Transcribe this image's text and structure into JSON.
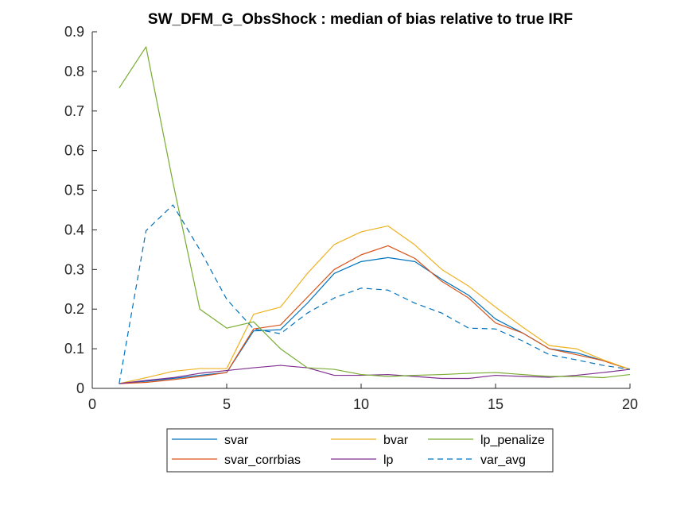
{
  "chart_data": {
    "type": "line",
    "title": "SW_DFM_G_ObsShock : median of bias relative to true IRF",
    "xlabel": "",
    "ylabel": "",
    "xlim": [
      0,
      20
    ],
    "ylim": [
      0,
      0.9
    ],
    "xticks": [
      0,
      5,
      10,
      15,
      20
    ],
    "yticks": [
      0,
      0.1,
      0.2,
      0.3,
      0.4,
      0.5,
      0.6,
      0.7,
      0.8,
      0.9
    ],
    "xtick_labels": [
      "0",
      "5",
      "10",
      "15",
      "20"
    ],
    "ytick_labels": [
      "0",
      "0.1",
      "0.2",
      "0.3",
      "0.4",
      "0.5",
      "0.6",
      "0.7",
      "0.8",
      "0.9"
    ],
    "grid": false,
    "legend_position": "bottom, outside, 3 columns",
    "x": [
      1,
      2,
      3,
      4,
      5,
      6,
      7,
      8,
      9,
      10,
      11,
      12,
      13,
      14,
      15,
      16,
      17,
      18,
      19,
      20
    ],
    "series": [
      {
        "name": "svar",
        "color": "#0072BD",
        "dash": "solid",
        "values": [
          0.012,
          0.018,
          0.025,
          0.033,
          0.04,
          0.145,
          0.148,
          0.215,
          0.29,
          0.32,
          0.33,
          0.32,
          0.275,
          0.235,
          0.175,
          0.14,
          0.1,
          0.09,
          0.07,
          0.048
        ]
      },
      {
        "name": "svar_corrbias",
        "color": "#D95319",
        "dash": "solid",
        "values": [
          0.012,
          0.015,
          0.022,
          0.03,
          0.04,
          0.15,
          0.16,
          0.23,
          0.3,
          0.337,
          0.36,
          0.328,
          0.27,
          0.228,
          0.165,
          0.14,
          0.1,
          0.085,
          0.07,
          0.048
        ]
      },
      {
        "name": "bvar",
        "color": "#EDB120",
        "dash": "solid",
        "values": [
          0.012,
          0.027,
          0.043,
          0.05,
          0.05,
          0.187,
          0.205,
          0.29,
          0.363,
          0.395,
          0.41,
          0.362,
          0.3,
          0.258,
          0.205,
          0.155,
          0.108,
          0.1,
          0.072,
          0.048
        ]
      },
      {
        "name": "lp",
        "color": "#7E2F8E",
        "dash": "solid",
        "values": [
          0.012,
          0.02,
          0.027,
          0.038,
          0.045,
          0.052,
          0.058,
          0.052,
          0.033,
          0.033,
          0.035,
          0.03,
          0.025,
          0.025,
          0.033,
          0.03,
          0.028,
          0.033,
          0.04,
          0.048
        ]
      },
      {
        "name": "lp_penalize",
        "color": "#77AC30",
        "dash": "solid",
        "values": [
          0.758,
          0.862,
          0.52,
          0.2,
          0.152,
          0.168,
          0.1,
          0.052,
          0.048,
          0.035,
          0.03,
          0.033,
          0.035,
          0.038,
          0.04,
          0.035,
          0.03,
          0.03,
          0.027,
          0.035
        ]
      },
      {
        "name": "var_avg",
        "color": "#0072BD",
        "dash": "dashed",
        "values": [
          0.012,
          0.398,
          0.463,
          0.35,
          0.225,
          0.15,
          0.138,
          0.19,
          0.228,
          0.253,
          0.248,
          0.215,
          0.19,
          0.152,
          0.15,
          0.12,
          0.085,
          0.072,
          0.058,
          0.048
        ]
      }
    ],
    "legend_order": [
      "svar",
      "bvar",
      "lp_penalize",
      "svar_corrbias",
      "lp",
      "var_avg"
    ]
  }
}
